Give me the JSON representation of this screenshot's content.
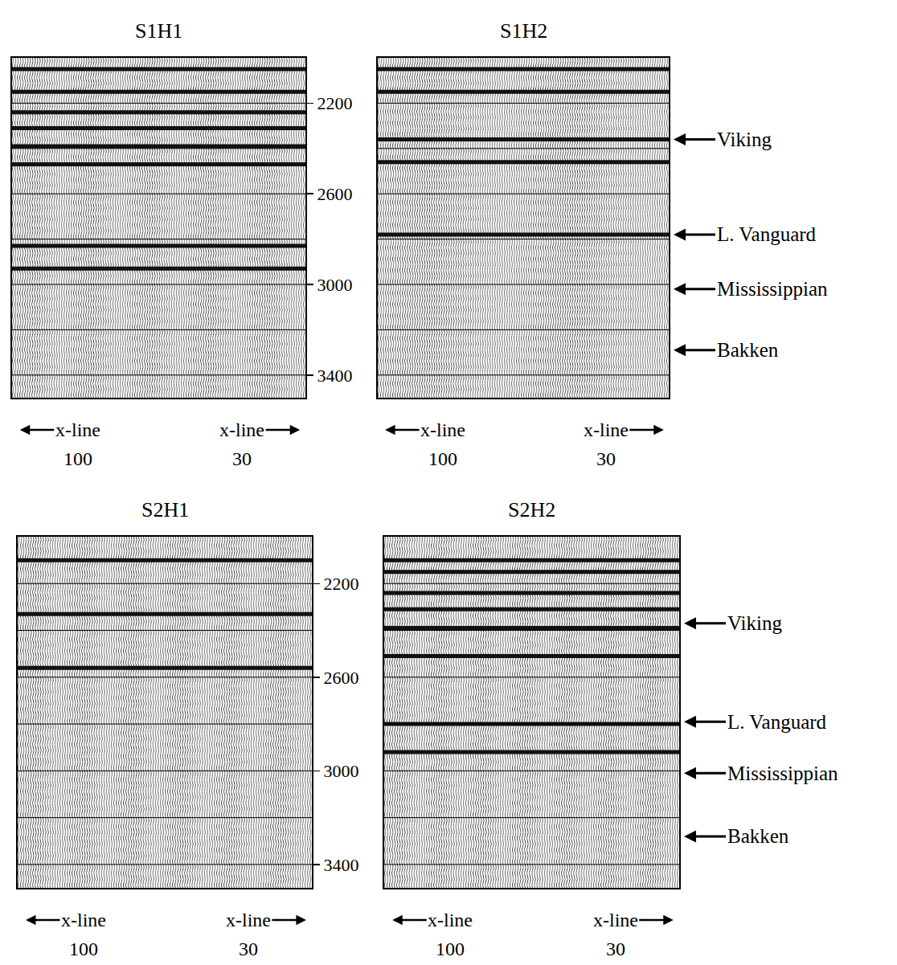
{
  "chart_data": [
    {
      "type": "seismic",
      "title": "S1H1",
      "xlim": [
        128,
        3
      ],
      "ylim": [
        2000,
        3500
      ],
      "yticks": [
        2200,
        2600,
        3000,
        3400
      ],
      "grid": true,
      "grid_lines": [
        2200,
        2400,
        2600,
        2800,
        3000,
        3200,
        3400
      ],
      "tick_labels": "y",
      "x_labels": [
        {
          "text": "x-line",
          "value": 100
        },
        {
          "text": "x-line",
          "value": 30
        }
      ],
      "strong_reflections": [
        2050,
        2150,
        2240,
        2310,
        2390,
        2470,
        2830,
        2930
      ]
    },
    {
      "type": "seismic",
      "title": "S1H2",
      "xlim": [
        128,
        3
      ],
      "ylim": [
        2000,
        3500
      ],
      "yticks": [
        2200,
        2600,
        3000,
        3400
      ],
      "grid": true,
      "grid_lines": [
        2200,
        2400,
        2600,
        2800,
        3000,
        3200,
        3400
      ],
      "tick_labels": false,
      "x_labels": [
        {
          "text": "x-line",
          "value": 100
        },
        {
          "text": "x-line",
          "value": 30
        }
      ],
      "strong_reflections": [
        2050,
        2150,
        2360,
        2460,
        2780
      ],
      "horizons": [
        {
          "label": "Viking",
          "time": 2360
        },
        {
          "label": "L. Vanguard",
          "time": 2780
        },
        {
          "label": "Mississippian",
          "time": 3020
        },
        {
          "label": "Bakken",
          "time": 3290
        }
      ]
    },
    {
      "type": "seismic",
      "title": "S2H1",
      "xlim": [
        128,
        3
      ],
      "ylim": [
        2000,
        3500
      ],
      "yticks": [
        2200,
        2600,
        3000,
        3400
      ],
      "grid": true,
      "grid_lines": [
        2200,
        2400,
        2600,
        2800,
        3000,
        3200,
        3400
      ],
      "tick_labels": "y",
      "x_labels": [
        {
          "text": "x-line",
          "value": 100
        },
        {
          "text": "x-line",
          "value": 30
        }
      ],
      "strong_reflections": [
        2100,
        2330,
        2560
      ]
    },
    {
      "type": "seismic",
      "title": "S2H2",
      "xlim": [
        128,
        3
      ],
      "ylim": [
        2000,
        3500
      ],
      "yticks": [
        2200,
        2600,
        3000,
        3400
      ],
      "grid": true,
      "grid_lines": [
        2200,
        2400,
        2600,
        2800,
        3000,
        3200,
        3400
      ],
      "tick_labels": false,
      "x_labels": [
        {
          "text": "x-line",
          "value": 100
        },
        {
          "text": "x-line",
          "value": 30
        }
      ],
      "strong_reflections": [
        2100,
        2150,
        2240,
        2310,
        2390,
        2510,
        2800,
        2920
      ],
      "horizons": [
        {
          "label": "Viking",
          "time": 2370
        },
        {
          "label": "L. Vanguard",
          "time": 2790
        },
        {
          "label": "Mississippian",
          "time": 3010
        },
        {
          "label": "Bakken",
          "time": 3280
        }
      ]
    }
  ]
}
